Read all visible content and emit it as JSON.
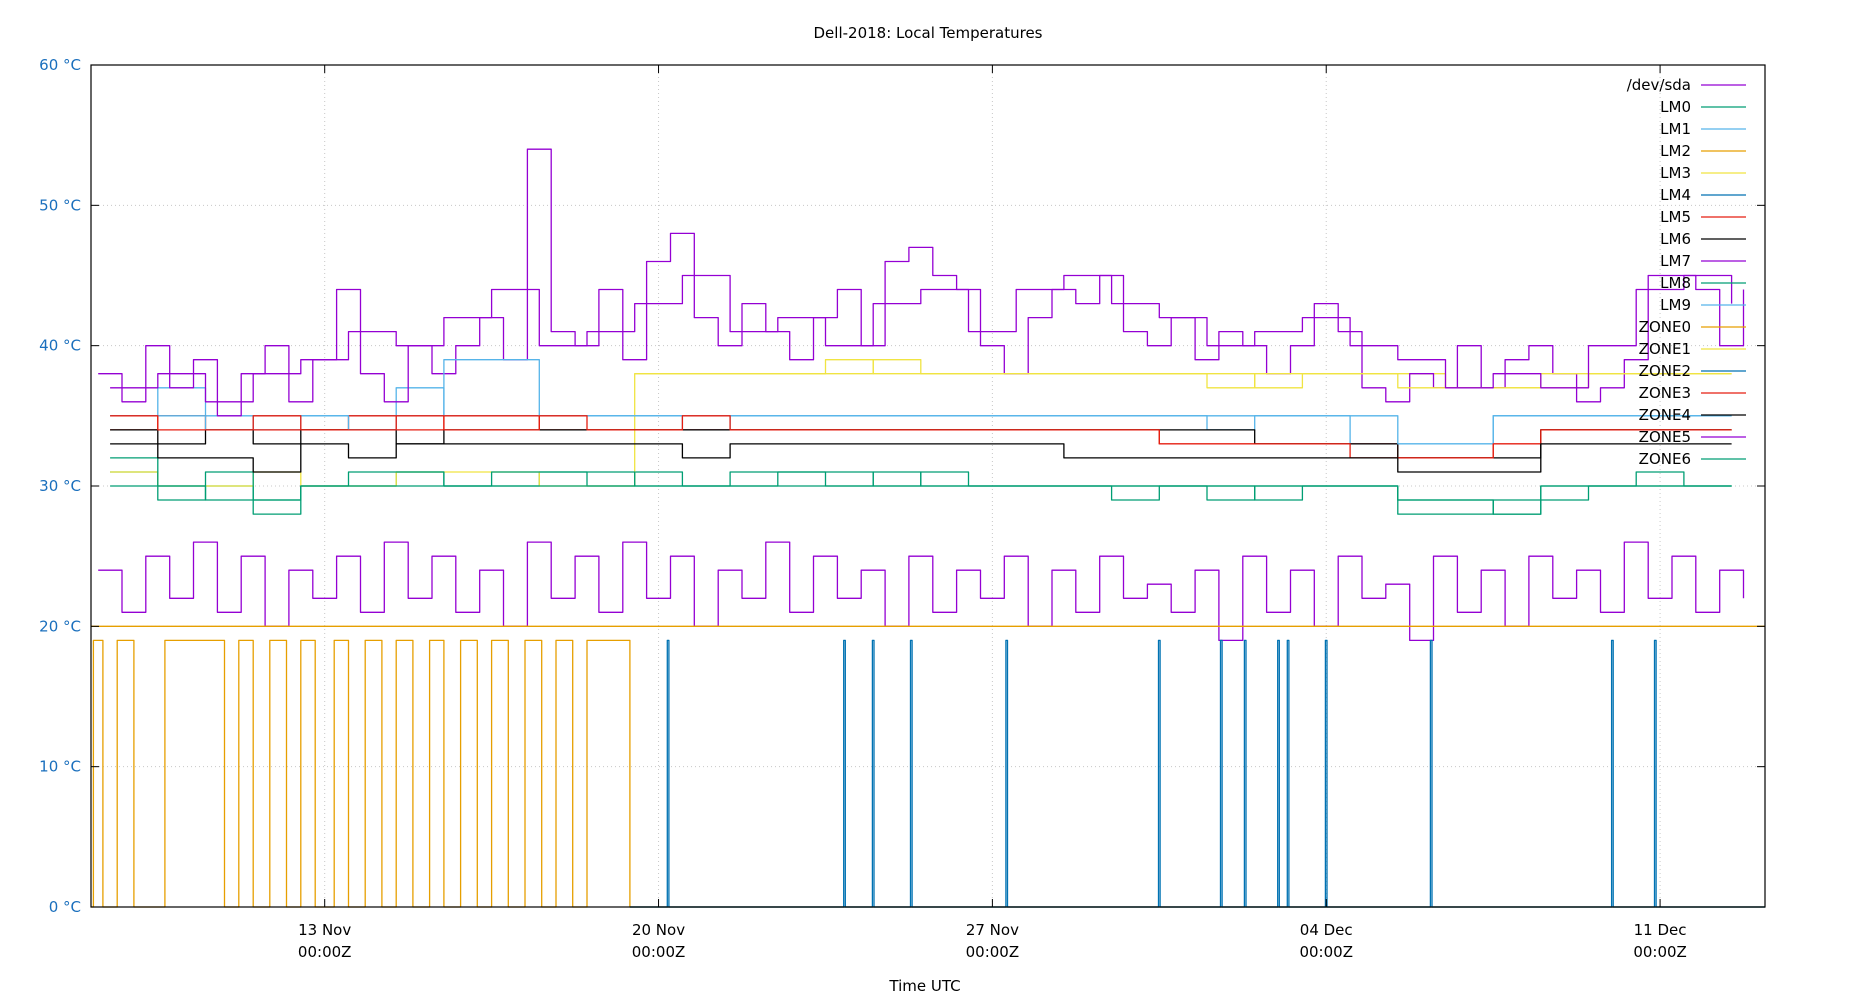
{
  "chart_data": {
    "type": "line",
    "title": "Dell-2018: Local Temperatures",
    "xlabel": "Time UTC",
    "ylabel": "",
    "ylim": [
      0,
      60
    ],
    "yticks": [
      0,
      10,
      20,
      30,
      40,
      50,
      60
    ],
    "ytick_suffix": " °C",
    "x_unit": "days since 08 Nov 00:00Z",
    "xlim": [
      0.1,
      35.2
    ],
    "xticks": [
      {
        "day": 5,
        "line1": "13 Nov",
        "line2": "00:00Z"
      },
      {
        "day": 12,
        "line1": "20 Nov",
        "line2": "00:00Z"
      },
      {
        "day": 19,
        "line1": "27 Nov",
        "line2": "00:00Z"
      },
      {
        "day": 26,
        "line1": "04 Dec",
        "line2": "00:00Z"
      },
      {
        "day": 33,
        "line1": "11 Dec",
        "line2": "00:00Z"
      }
    ],
    "grid": true,
    "legend_position": "top-right",
    "series": [
      {
        "name": "/dev/sda",
        "color": "#9400d3",
        "x0": 0.25,
        "dx": 0.5,
        "values": [
          24,
          21,
          25,
          22,
          26,
          21,
          25,
          20,
          24,
          22,
          25,
          21,
          26,
          22,
          25,
          21,
          24,
          20,
          26,
          22,
          25,
          21,
          26,
          22,
          25,
          20,
          24,
          22,
          26,
          21,
          25,
          22,
          24,
          20,
          25,
          21,
          24,
          22,
          25,
          20,
          24,
          21,
          25,
          22,
          23,
          21,
          24,
          19,
          25,
          21,
          24,
          20,
          25,
          22,
          23,
          19,
          25,
          21,
          24,
          20,
          25,
          22,
          24,
          21,
          26,
          22,
          25,
          21,
          24,
          22
        ]
      },
      {
        "name": "LM0",
        "color": "#009e73",
        "x0": 0.5,
        "dx": 1,
        "values": [
          31,
          29,
          30,
          28,
          30,
          30,
          31,
          30,
          30,
          31,
          30,
          31,
          30,
          30,
          31,
          30,
          30,
          31,
          30,
          30,
          30,
          29,
          30,
          30,
          29,
          30,
          30,
          29,
          29,
          28,
          29,
          30,
          31,
          30,
          30
        ]
      },
      {
        "name": "LM1",
        "color": "#56b4e9",
        "x0": 0.5,
        "dx": 1,
        "values": [
          35,
          37,
          35,
          34,
          35,
          35,
          37,
          35,
          35,
          35,
          35,
          35,
          34,
          35,
          35,
          35,
          35,
          35,
          35,
          35,
          35,
          35,
          35,
          34,
          35,
          35,
          33,
          33,
          33,
          35,
          35,
          35,
          35,
          35,
          35
        ]
      },
      {
        "name": "LM2",
        "color": "#e69f00",
        "step": true,
        "points": [
          [
            0.1,
            0
          ],
          [
            0.15,
            19
          ],
          [
            0.35,
            0
          ],
          [
            0.65,
            19
          ],
          [
            1.0,
            0
          ],
          [
            1.65,
            19
          ],
          [
            2.9,
            0
          ],
          [
            3.2,
            19
          ],
          [
            3.5,
            0
          ],
          [
            3.85,
            19
          ],
          [
            4.2,
            0
          ],
          [
            4.5,
            19
          ],
          [
            4.8,
            0
          ],
          [
            5.2,
            19
          ],
          [
            5.5,
            0
          ],
          [
            5.85,
            19
          ],
          [
            6.2,
            0
          ],
          [
            6.5,
            19
          ],
          [
            6.85,
            0
          ],
          [
            7.2,
            19
          ],
          [
            7.5,
            0
          ],
          [
            7.85,
            19
          ],
          [
            8.2,
            0
          ],
          [
            8.5,
            19
          ],
          [
            8.85,
            0
          ],
          [
            9.2,
            19
          ],
          [
            9.55,
            0
          ],
          [
            9.85,
            19
          ],
          [
            10.2,
            0
          ],
          [
            10.5,
            19
          ],
          [
            11.4,
            0
          ],
          [
            35.2,
            0
          ]
        ]
      },
      {
        "name": "LM3",
        "color": "#f0e442",
        "x0": 0.5,
        "dx": 1,
        "values": [
          31,
          30,
          30,
          31,
          30,
          30,
          31,
          31,
          31,
          30,
          30,
          38,
          38,
          38,
          38,
          38,
          39,
          38,
          38,
          38,
          38,
          38,
          38,
          38,
          37,
          38,
          38,
          38,
          37,
          37,
          37,
          38,
          38,
          38,
          38
        ]
      },
      {
        "name": "LM4",
        "color": "#0072b2",
        "base": 0,
        "spike_value": 19,
        "spike_days": [
          12.2,
          15.9,
          16.5,
          17.3,
          19.3,
          22.5,
          23.8,
          24.3,
          25.0,
          25.2,
          26.0,
          28.2,
          32.0,
          32.9
        ]
      },
      {
        "name": "LM5",
        "color": "#e51e10",
        "x0": 0.5,
        "dx": 1,
        "values": [
          34,
          35,
          34,
          34,
          34,
          35,
          34,
          35,
          35,
          34,
          34,
          34,
          34,
          34,
          34,
          34,
          34,
          34,
          34,
          34,
          34,
          34,
          33,
          33,
          33,
          33,
          33,
          32,
          32,
          33,
          34,
          34,
          34,
          34,
          34
        ]
      },
      {
        "name": "LM6",
        "color": "#000000",
        "x0": 0.5,
        "dx": 1,
        "values": [
          34,
          33,
          34,
          33,
          34,
          34,
          33,
          34,
          34,
          34,
          34,
          34,
          34,
          34,
          34,
          34,
          34,
          34,
          34,
          34,
          34,
          34,
          34,
          34,
          33,
          33,
          33,
          32,
          32,
          32,
          34,
          34,
          34,
          34,
          34
        ]
      },
      {
        "name": "LM7",
        "color": "#9400d3",
        "x0": 0.25,
        "dx": 0.5,
        "values": [
          38,
          36,
          40,
          37,
          39,
          35,
          38,
          40,
          36,
          39,
          44,
          38,
          36,
          40,
          38,
          40,
          42,
          39,
          54,
          41,
          40,
          44,
          39,
          46,
          48,
          42,
          40,
          43,
          41,
          39,
          42,
          44,
          40,
          46,
          47,
          45,
          44,
          40,
          38,
          42,
          44,
          43,
          45,
          41,
          40,
          42,
          39,
          41,
          40,
          38,
          40,
          43,
          41,
          37,
          36,
          38,
          37,
          40,
          37,
          39,
          40,
          38,
          36,
          37,
          39,
          45,
          45,
          44,
          40,
          44
        ]
      },
      {
        "name": "LM8",
        "color": "#009e73",
        "x0": 0.5,
        "dx": 1,
        "values": [
          32,
          30,
          31,
          29,
          30,
          31,
          31,
          30,
          31,
          31,
          31,
          30,
          30,
          31,
          31,
          31,
          30,
          30,
          30,
          30,
          30,
          30,
          30,
          29,
          30,
          30,
          30,
          28,
          28,
          29,
          30,
          30,
          30,
          30,
          30
        ]
      },
      {
        "name": "LM9",
        "color": "#56b4e9",
        "x0": 0.5,
        "dx": 1,
        "values": [
          35,
          35,
          34,
          35,
          35,
          34,
          35,
          39,
          39,
          35,
          35,
          35,
          35,
          35,
          35,
          35,
          35,
          35,
          35,
          35,
          35,
          35,
          35,
          35,
          35,
          35,
          35,
          33,
          33,
          35,
          35,
          35,
          35,
          35,
          35
        ]
      },
      {
        "name": "ZONE0",
        "color": "#e69f00",
        "x0": 0.1,
        "dx": 35.1,
        "values": [
          20,
          20
        ]
      },
      {
        "name": "ZONE1",
        "color": "#f0e442",
        "x0": 11.5,
        "dx": 1,
        "values": [
          38,
          38,
          38,
          38,
          39,
          38,
          38,
          38,
          38,
          38,
          38,
          38,
          37,
          38,
          38,
          38,
          37,
          37,
          37,
          38,
          38,
          38,
          38,
          38
        ]
      },
      {
        "name": "ZONE2",
        "color": "#0072b2",
        "x0": 11.4,
        "dx": 23.8,
        "values": [
          0,
          0
        ]
      },
      {
        "name": "ZONE3",
        "color": "#e51e10",
        "x0": 0.5,
        "dx": 1,
        "values": [
          35,
          34,
          34,
          35,
          34,
          34,
          35,
          34,
          34,
          35,
          34,
          34,
          35,
          34,
          34,
          34,
          34,
          34,
          34,
          34,
          34,
          34,
          33,
          33,
          33,
          33,
          32,
          32,
          32,
          33,
          34,
          34,
          34,
          34,
          34
        ]
      },
      {
        "name": "ZONE4",
        "color": "#000000",
        "x0": 0.5,
        "dx": 1,
        "values": [
          33,
          32,
          32,
          31,
          33,
          32,
          33,
          33,
          33,
          33,
          33,
          33,
          32,
          33,
          33,
          33,
          33,
          33,
          33,
          33,
          32,
          32,
          32,
          32,
          32,
          32,
          32,
          31,
          31,
          31,
          33,
          33,
          33,
          33,
          33
        ]
      },
      {
        "name": "ZONE5",
        "color": "#9400d3",
        "x0": 0.5,
        "dx": 1,
        "values": [
          37,
          38,
          36,
          38,
          39,
          41,
          40,
          42,
          44,
          40,
          41,
          43,
          45,
          41,
          42,
          40,
          43,
          44,
          41,
          44,
          45,
          43,
          42,
          40,
          41,
          42,
          40,
          39,
          37,
          38,
          37,
          40,
          44,
          45,
          43
        ]
      },
      {
        "name": "ZONE6",
        "color": "#009e73",
        "x0": 0.5,
        "dx": 1,
        "values": [
          30,
          30,
          29,
          29,
          30,
          30,
          30,
          30,
          30,
          30,
          30,
          30,
          30,
          30,
          30,
          30,
          31,
          30,
          30,
          30,
          30,
          30,
          30,
          30,
          30,
          30,
          30,
          29,
          29,
          28,
          30,
          30,
          30,
          30,
          30
        ]
      }
    ]
  }
}
